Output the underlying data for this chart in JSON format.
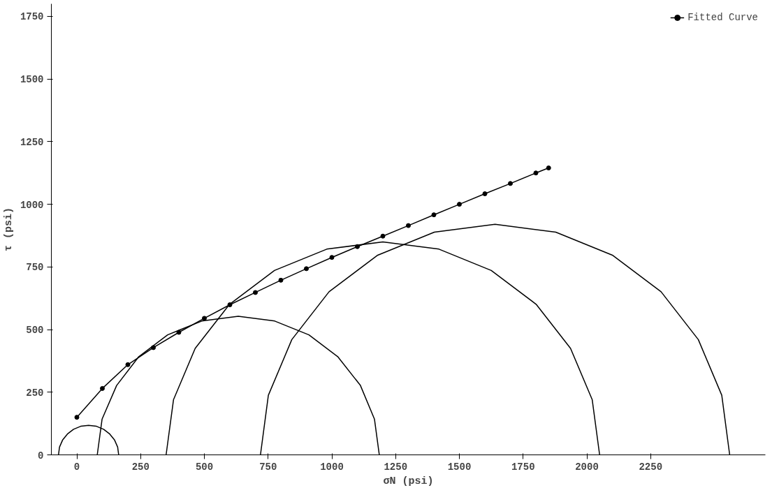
{
  "chart_data": {
    "type": "line",
    "xlabel": "σN (psi)",
    "ylabel": "τ (psi)",
    "xlim": [
      -100,
      2700
    ],
    "ylim": [
      0,
      1800
    ],
    "xticks": [
      0,
      250,
      500,
      750,
      1000,
      1250,
      1500,
      1750,
      2000,
      2250
    ],
    "yticks": [
      0,
      250,
      500,
      750,
      1000,
      1250,
      1500,
      1750
    ],
    "grid": false,
    "legend": "top right",
    "line_style": "solid",
    "series": [
      {
        "color": "#000000",
        "marker": "none",
        "x": [
          164,
          160,
          148,
          129,
          105,
          77,
          46,
          15,
          -13,
          -37,
          -56,
          -68,
          -72
        ],
        "values": [
          0,
          31,
          59,
          83,
          102,
          114,
          118,
          114,
          102,
          83,
          59,
          31,
          0
        ]
      },
      {
        "color": "#000000",
        "marker": "none",
        "x": [
          1186,
          1167,
          1112,
          1024,
          910,
          776,
          633,
          490,
          356,
          242,
          156,
          99,
          80
        ],
        "values": [
          0,
          143,
          277,
          391,
          479,
          534,
          553,
          534,
          479,
          391,
          277,
          143,
          0
        ]
      },
      {
        "color": "#000000",
        "marker": "none",
        "x": [
          2050,
          2021,
          1936,
          1801,
          1625,
          1420,
          1200,
          980,
          775,
          599,
          464,
          379,
          350
        ],
        "values": [
          0,
          220,
          425,
          601,
          736,
          821,
          850,
          821,
          736,
          601,
          425,
          220,
          0
        ]
      },
      {
        "color": "#000000",
        "marker": "none",
        "x": [
          2560,
          2529,
          2437,
          2291,
          2100,
          1878,
          1640,
          1402,
          1180,
          989,
          843,
          751,
          720
        ],
        "values": [
          0,
          238,
          460,
          651,
          797,
          889,
          920,
          889,
          797,
          651,
          460,
          238,
          0
        ]
      },
      {
        "name": "Fitted Curve",
        "color": "#000000",
        "marker": "circle",
        "x": [
          0,
          100,
          200,
          300,
          400,
          500,
          600,
          700,
          800,
          900,
          1000,
          1100,
          1200,
          1300,
          1400,
          1500,
          1600,
          1700,
          1800,
          1850
        ],
        "values": [
          150,
          265,
          360,
          428,
          489,
          545,
          599,
          648,
          697,
          743,
          788,
          831,
          873,
          915,
          958,
          1000,
          1042,
          1083,
          1125,
          1145
        ]
      }
    ]
  }
}
